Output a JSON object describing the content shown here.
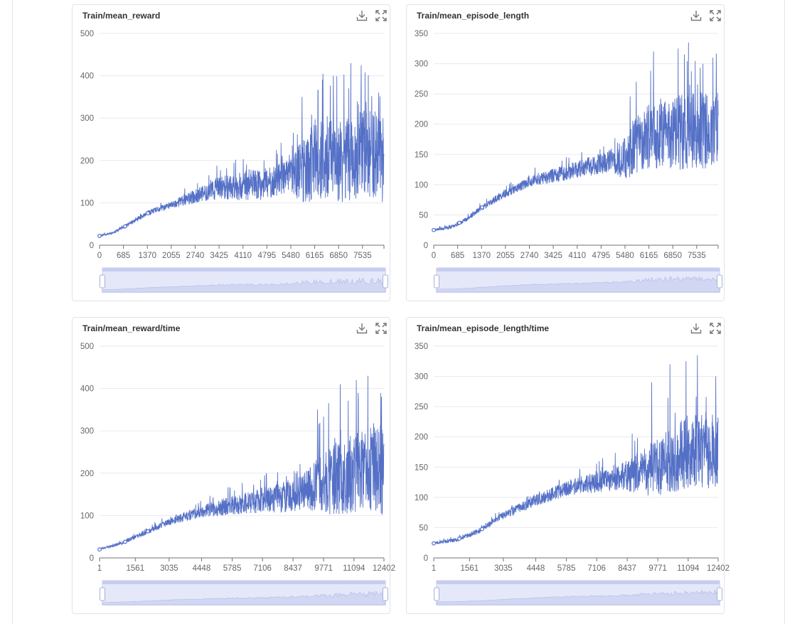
{
  "colors": {
    "series": "#5470c6",
    "grid": "#e9e9ef",
    "axis": "#6e7079",
    "slider_fill": "#d7dcf7",
    "slider_border": "#c6cbe6",
    "text": "#333333"
  },
  "icons": {
    "download": "download-icon",
    "fullscreen": "fullscreen-icon"
  },
  "chart_data": [
    {
      "type": "line",
      "title": "Train/mean_reward",
      "x_ticks": [
        0,
        685,
        1370,
        2055,
        2740,
        3425,
        4110,
        4795,
        5480,
        6165,
        6850,
        7535
      ],
      "x_range": [
        0,
        8150
      ],
      "y_ticks": [
        0,
        100,
        200,
        300,
        400,
        500
      ],
      "ylim": [
        0,
        500
      ],
      "series": [
        {
          "points": [
            [
              0,
              22
            ],
            [
              400,
              30
            ],
            [
              700,
              43
            ],
            [
              1370,
              75
            ],
            [
              2055,
              95
            ],
            [
              2740,
              115
            ],
            [
              3425,
              135
            ],
            [
              4110,
              140
            ],
            [
              4795,
              145
            ],
            [
              5480,
              165
            ],
            [
              6165,
              195
            ],
            [
              6850,
              200
            ],
            [
              7535,
              210
            ],
            [
              8150,
              210
            ]
          ]
        }
      ],
      "noise": [
        [
          0,
          2
        ],
        [
          2000,
          8
        ],
        [
          3000,
          20
        ],
        [
          4110,
          35
        ],
        [
          5480,
          40
        ],
        [
          5800,
          80
        ],
        [
          6500,
          100
        ],
        [
          8150,
          110
        ]
      ],
      "spikes": [
        [
          5800,
          350
        ],
        [
          6700,
          400
        ],
        [
          7200,
          430
        ],
        [
          7500,
          425
        ],
        [
          8000,
          360
        ]
      ],
      "seed": 11
    },
    {
      "type": "line",
      "title": "Train/mean_episode_length",
      "x_ticks": [
        0,
        685,
        1370,
        2055,
        2740,
        3425,
        4110,
        4795,
        5480,
        6165,
        6850,
        7535
      ],
      "x_range": [
        0,
        8150
      ],
      "y_ticks": [
        0,
        50,
        100,
        150,
        200,
        250,
        300,
        350
      ],
      "ylim": [
        0,
        350
      ],
      "series": [
        {
          "points": [
            [
              0,
              25
            ],
            [
              500,
              30
            ],
            [
              1000,
              45
            ],
            [
              1370,
              62
            ],
            [
              2055,
              85
            ],
            [
              2740,
              105
            ],
            [
              3425,
              115
            ],
            [
              4110,
              125
            ],
            [
              4795,
              135
            ],
            [
              5480,
              145
            ],
            [
              5800,
              165
            ],
            [
              6165,
              180
            ],
            [
              6850,
              185
            ],
            [
              7535,
              190
            ],
            [
              8150,
              190
            ]
          ]
        }
      ],
      "noise": [
        [
          0,
          2
        ],
        [
          2000,
          6
        ],
        [
          3500,
          12
        ],
        [
          5000,
          18
        ],
        [
          5700,
          45
        ],
        [
          6500,
          60
        ],
        [
          8150,
          65
        ]
      ],
      "spikes": [
        [
          5800,
          270
        ],
        [
          6300,
          320
        ],
        [
          7000,
          325
        ],
        [
          7300,
          335
        ],
        [
          8000,
          310
        ]
      ],
      "seed": 23
    },
    {
      "type": "line",
      "title": "Train/mean_reward/time",
      "x_ticks": [
        1,
        1561,
        3035,
        4448,
        5785,
        7106,
        8437,
        9771,
        11094,
        12402
      ],
      "x_range": [
        1,
        12402
      ],
      "y_ticks": [
        0,
        100,
        200,
        300,
        400,
        500
      ],
      "ylim": [
        0,
        500
      ],
      "series": [
        {
          "points": [
            [
              1,
              20
            ],
            [
              1000,
              35
            ],
            [
              2000,
              60
            ],
            [
              3035,
              85
            ],
            [
              4448,
              110
            ],
            [
              5785,
              125
            ],
            [
              7106,
              135
            ],
            [
              8437,
              150
            ],
            [
              9771,
              175
            ],
            [
              11094,
              200
            ],
            [
              12402,
              210
            ]
          ]
        }
      ],
      "noise": [
        [
          1,
          2
        ],
        [
          3000,
          8
        ],
        [
          5000,
          18
        ],
        [
          7000,
          30
        ],
        [
          9000,
          45
        ],
        [
          10000,
          85
        ],
        [
          12402,
          110
        ]
      ],
      "spikes": [
        [
          9500,
          350
        ],
        [
          10500,
          410
        ],
        [
          11200,
          420
        ],
        [
          11700,
          430
        ],
        [
          12300,
          380
        ]
      ],
      "seed": 37
    },
    {
      "type": "line",
      "title": "Train/mean_episode_length/time",
      "x_ticks": [
        1,
        1561,
        3035,
        4448,
        5785,
        7106,
        8437,
        9771,
        11094,
        12402
      ],
      "x_range": [
        1,
        12402
      ],
      "y_ticks": [
        0,
        50,
        100,
        150,
        200,
        250,
        300,
        350
      ],
      "ylim": [
        0,
        350
      ],
      "series": [
        {
          "points": [
            [
              1,
              24
            ],
            [
              1000,
              30
            ],
            [
              2000,
              45
            ],
            [
              3035,
              70
            ],
            [
              4448,
              95
            ],
            [
              5785,
              115
            ],
            [
              7106,
              125
            ],
            [
              8437,
              135
            ],
            [
              9771,
              150
            ],
            [
              11094,
              175
            ],
            [
              12402,
              180
            ]
          ]
        }
      ],
      "noise": [
        [
          1,
          2
        ],
        [
          3000,
          6
        ],
        [
          5500,
          12
        ],
        [
          8000,
          20
        ],
        [
          9500,
          45
        ],
        [
          11000,
          60
        ],
        [
          12402,
          65
        ]
      ],
      "spikes": [
        [
          9500,
          290
        ],
        [
          10300,
          320
        ],
        [
          11000,
          325
        ],
        [
          11500,
          335
        ],
        [
          12300,
          300
        ]
      ],
      "seed": 51
    }
  ]
}
